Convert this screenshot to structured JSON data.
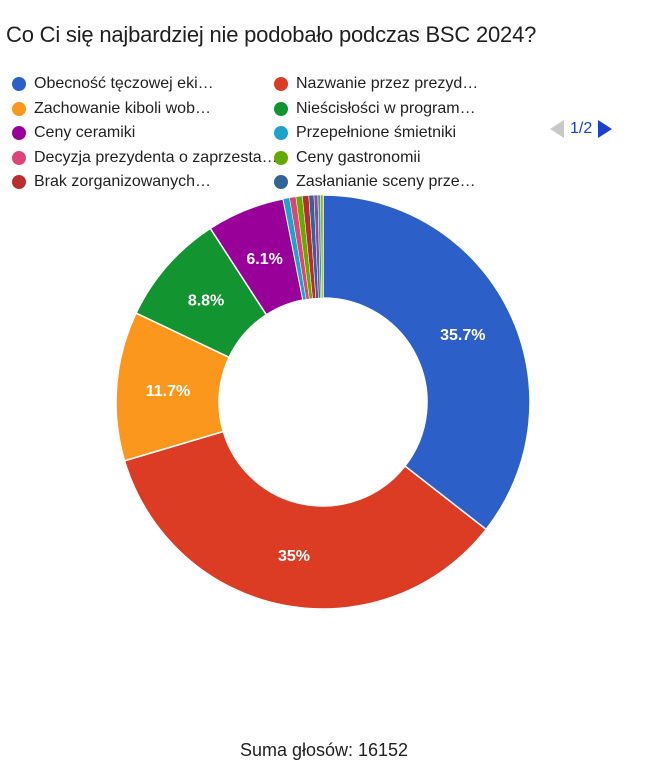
{
  "chart_data": {
    "type": "pie",
    "style": "donut",
    "title": "Co Ci się najbardziej nie podobało podczas BSC 2024?",
    "legend_position": "top",
    "legend_page": "1/2",
    "total_label": "Suma głosów: 16152",
    "series": [
      {
        "label": "Obecność tęczowej eki…",
        "value": 35.7,
        "color": "#2d5fc9",
        "data_label": "35.7%"
      },
      {
        "label": "Nazwanie przez prezyd…",
        "value": 35.0,
        "color": "#dc3b24",
        "data_label": "35%"
      },
      {
        "label": "Zachowanie kiboli wob…",
        "value": 11.7,
        "color": "#fb971c",
        "data_label": "11.7%"
      },
      {
        "label": "Nieścisłości w program…",
        "value": 8.8,
        "color": "#129430",
        "data_label": "8.8%"
      },
      {
        "label": "Ceny ceramiki",
        "value": 6.1,
        "color": "#990099",
        "data_label": "6.1%"
      },
      {
        "label": "Przepełnione śmietniki",
        "value": 0.5,
        "color": "#1ca3c9",
        "data_label": ""
      },
      {
        "label": "Decyzja prezydenta o zaprzesta…",
        "value": 0.5,
        "color": "#dc4577",
        "data_label": ""
      },
      {
        "label": "Ceny gastronomii",
        "value": 0.5,
        "color": "#66aa00",
        "data_label": ""
      },
      {
        "label": "Brak zorganizowanych…",
        "value": 0.5,
        "color": "#b82e2e",
        "data_label": ""
      },
      {
        "label": "Zasłanianie sceny prze…",
        "value": 0.4,
        "color": "#316394",
        "data_label": ""
      },
      {
        "label": "",
        "value": 0.3,
        "color": "#994499",
        "data_label": ""
      },
      {
        "label": "",
        "value": 0.2,
        "color": "#22aa99",
        "data_label": ""
      },
      {
        "label": "",
        "value": 0.2,
        "color": "#aaaa11",
        "data_label": ""
      }
    ]
  }
}
